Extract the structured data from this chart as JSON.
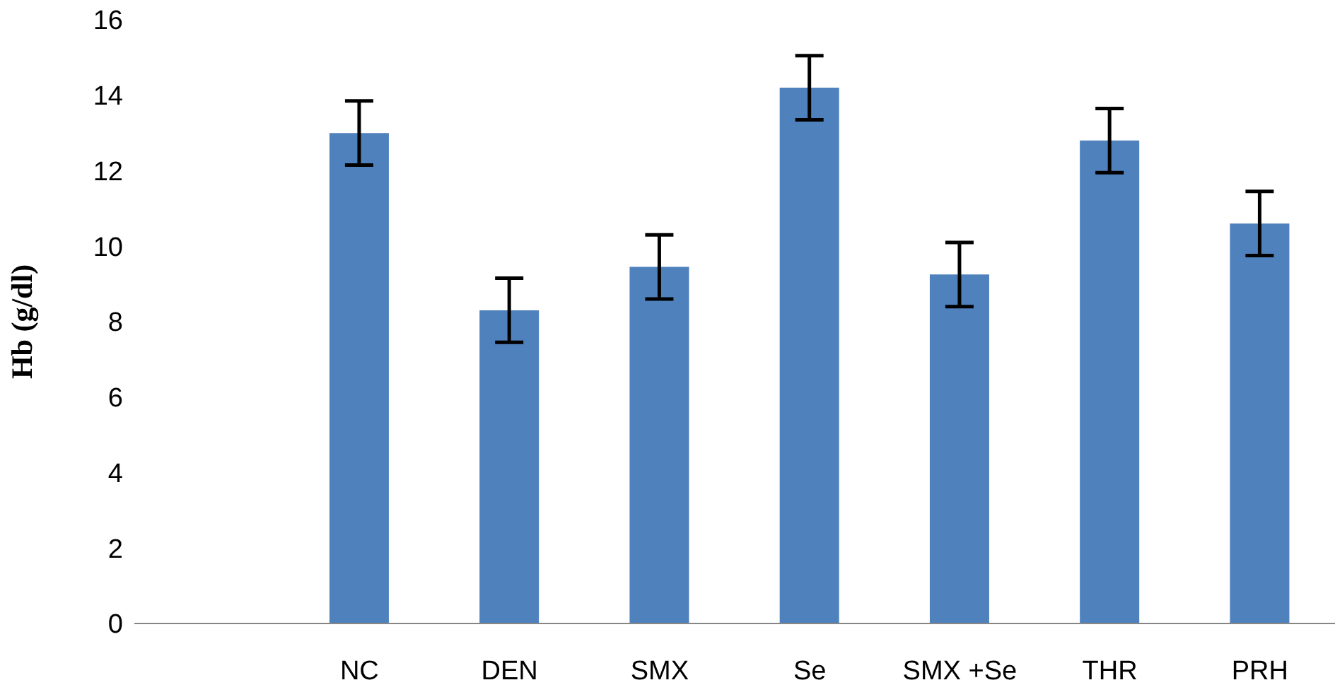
{
  "chart_data": {
    "type": "bar",
    "ylabel": "Hb (g/dl)",
    "categories": [
      null,
      "NC",
      "DEN",
      "SMX",
      "Se",
      "SMX +Se",
      "THR",
      "PRH"
    ],
    "values": [
      null,
      13.0,
      8.3,
      9.45,
      14.2,
      9.25,
      12.8,
      10.6
    ],
    "errors": [
      null,
      0.85,
      0.85,
      0.85,
      0.85,
      0.85,
      0.85,
      0.85
    ],
    "color": "#4f81bd",
    "ylim": [
      0,
      16
    ],
    "yticks": [
      0,
      2,
      4,
      6,
      8,
      10,
      12,
      14,
      16
    ],
    "grid": false,
    "legend": false
  }
}
